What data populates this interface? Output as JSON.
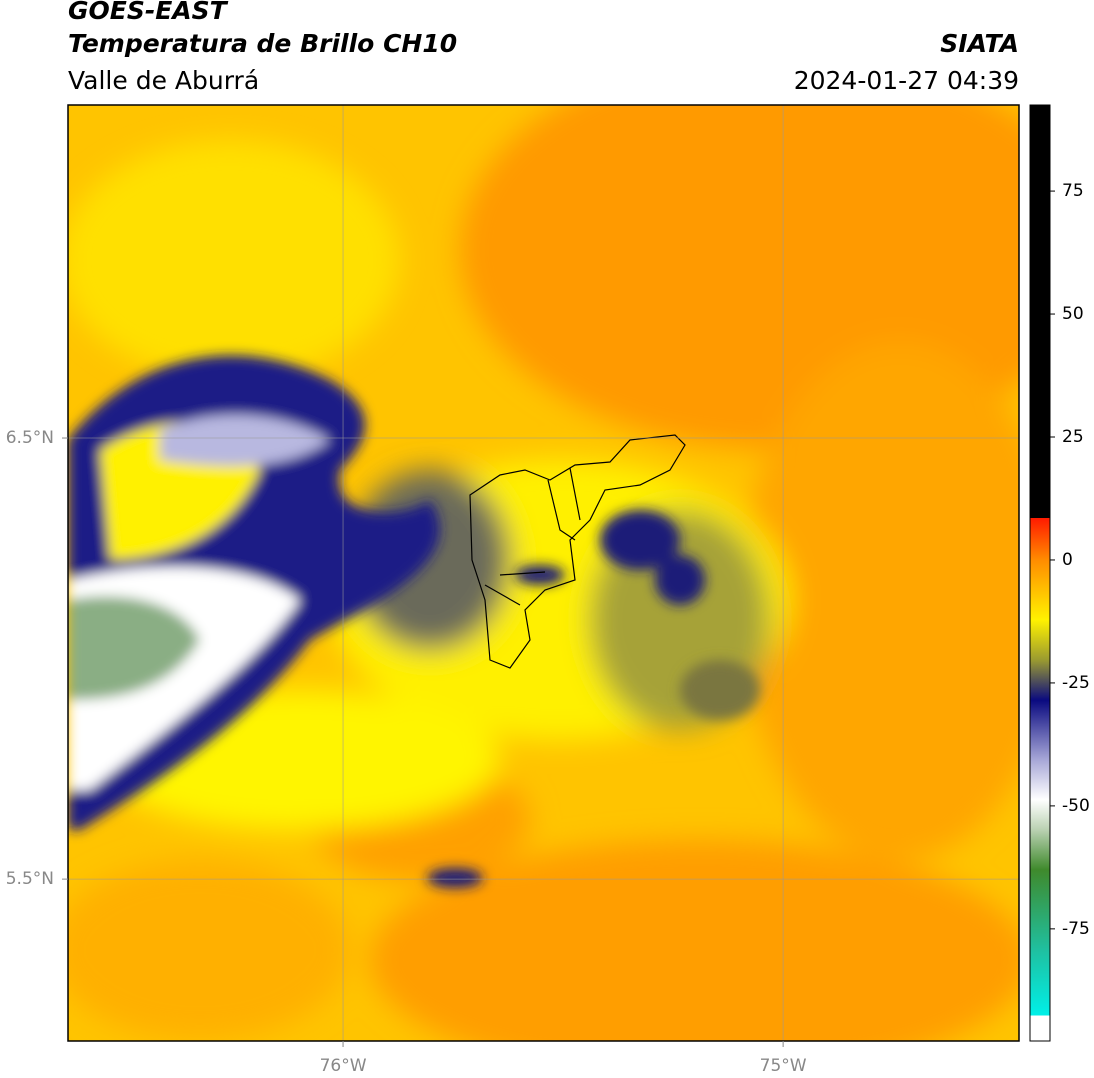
{
  "header": {
    "title": "GOES-EAST",
    "subtitle": "Temperatura de Brillo CH10",
    "region": "Valle de Aburrá",
    "source": "SIATA",
    "datetime": "2024-01-27 04:39"
  },
  "map": {
    "xlim": [
      -76.625,
      -74.464
    ],
    "ylim": [
      5.133,
      7.255
    ],
    "xticks": [
      {
        "value": -76,
        "label": "76°W"
      },
      {
        "value": -75,
        "label": "75°W"
      }
    ],
    "yticks": [
      {
        "value": 6.5,
        "label": "6.5°N"
      },
      {
        "value": 5.5,
        "label": "5.5°N"
      }
    ],
    "grid": true
  },
  "colorbar": {
    "ylim": [
      -97.8,
      92.5
    ],
    "yticks": [
      75,
      50,
      25,
      0,
      -25,
      -50,
      -75
    ]
  }
}
